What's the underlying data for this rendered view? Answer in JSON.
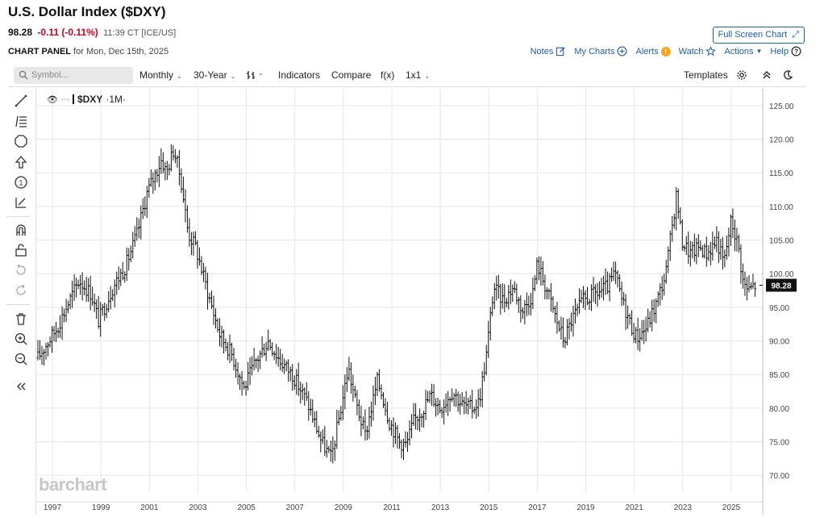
{
  "header": {
    "title": "U.S. Dollar Index ($DXY)",
    "last": "98.28",
    "change": "-0.11 (-0.11%)",
    "time": "11:39 CT [ICE/US]",
    "fullscreen_label": "Full Screen Chart",
    "panel_label": "CHART PANEL",
    "panel_date": "for Mon, Dec 15th, 2025"
  },
  "links": {
    "notes": "Notes",
    "my_charts": "My Charts",
    "alerts": "Alerts",
    "watch": "Watch",
    "actions": "Actions",
    "help": "Help"
  },
  "toolbar": {
    "symbol_placeholder": "Symbol...",
    "frequency": "Monthly",
    "period": "30-Year",
    "indicators": "Indicators",
    "compare": "Compare",
    "fx": "f(x)",
    "layout": "1x1",
    "templates": "Templates"
  },
  "legend": {
    "symbol": "$DXY",
    "interval": "·1M·"
  },
  "watermark": "barchart",
  "colors": {
    "link": "#1f5fa8",
    "negative": "#d0021b",
    "bar": "#111111",
    "price_tag": "#111111",
    "grid": "#e6e6e6"
  },
  "chart_data": {
    "type": "bar",
    "subtype": "ohlc",
    "symbol": "$DXY",
    "interval": "1M",
    "last_price": "98.28",
    "ylim": [
      67.5,
      127.5
    ],
    "yticks": [
      "125.00",
      "120.00",
      "115.00",
      "110.00",
      "105.00",
      "100.00",
      "95.00",
      "90.00",
      "85.00",
      "80.00",
      "75.00",
      "70.00"
    ],
    "xlim": [
      1996.3,
      2026.3
    ],
    "xticks": [
      "1997",
      "1999",
      "2001",
      "2003",
      "2005",
      "2007",
      "2009",
      "2011",
      "2013",
      "2015",
      "2017",
      "2019",
      "2021",
      "2023",
      "2025"
    ],
    "grid": true,
    "anchors": [
      [
        1996.4,
        87.5
      ],
      [
        1997.2,
        92
      ],
      [
        1997.7,
        96
      ],
      [
        1998.1,
        99
      ],
      [
        1998.6,
        97
      ],
      [
        1998.9,
        93
      ],
      [
        1999.5,
        98
      ],
      [
        2000.0,
        101
      ],
      [
        2000.5,
        106
      ],
      [
        2000.9,
        112
      ],
      [
        2001.5,
        117
      ],
      [
        2001.7,
        115
      ],
      [
        2002.0,
        118.5
      ],
      [
        2002.3,
        114
      ],
      [
        2002.6,
        106
      ],
      [
        2002.9,
        104
      ],
      [
        2003.5,
        96
      ],
      [
        2003.9,
        91
      ],
      [
        2004.4,
        88
      ],
      [
        2004.9,
        83
      ],
      [
        2005.4,
        87
      ],
      [
        2005.9,
        90
      ],
      [
        2006.4,
        87
      ],
      [
        2006.9,
        85
      ],
      [
        2007.5,
        81
      ],
      [
        2008.1,
        75
      ],
      [
        2008.5,
        72.5
      ],
      [
        2008.9,
        80
      ],
      [
        2009.2,
        86
      ],
      [
        2009.5,
        81
      ],
      [
        2009.9,
        76
      ],
      [
        2010.4,
        84
      ],
      [
        2010.6,
        82
      ],
      [
        2010.9,
        78
      ],
      [
        2011.3,
        75
      ],
      [
        2011.6,
        74.5
      ],
      [
        2011.9,
        78
      ],
      [
        2012.3,
        80
      ],
      [
        2012.6,
        82
      ],
      [
        2013.0,
        80
      ],
      [
        2013.5,
        82.5
      ],
      [
        2013.9,
        80.5
      ],
      [
        2014.3,
        80
      ],
      [
        2014.6,
        81
      ],
      [
        2014.9,
        88
      ],
      [
        2015.2,
        98
      ],
      [
        2015.6,
        96
      ],
      [
        2016.0,
        98
      ],
      [
        2016.4,
        94.5
      ],
      [
        2016.8,
        97
      ],
      [
        2017.0,
        101.5
      ],
      [
        2017.4,
        97.5
      ],
      [
        2017.8,
        93
      ],
      [
        2018.1,
        90
      ],
      [
        2018.4,
        93
      ],
      [
        2018.9,
        96
      ],
      [
        2019.4,
        97
      ],
      [
        2019.9,
        98
      ],
      [
        2020.2,
        100
      ],
      [
        2020.5,
        96
      ],
      [
        2020.9,
        92
      ],
      [
        2021.1,
        90.5
      ],
      [
        2021.5,
        92
      ],
      [
        2021.9,
        95.5
      ],
      [
        2022.3,
        100
      ],
      [
        2022.75,
        112
      ],
      [
        2022.95,
        105
      ],
      [
        2023.3,
        103
      ],
      [
        2023.7,
        104
      ],
      [
        2024.0,
        103
      ],
      [
        2024.4,
        105
      ],
      [
        2024.7,
        101.5
      ],
      [
        2025.0,
        108
      ],
      [
        2025.3,
        104
      ],
      [
        2025.5,
        98.5
      ],
      [
        2025.7,
        97.5
      ],
      [
        2025.95,
        98.3
      ]
    ]
  }
}
